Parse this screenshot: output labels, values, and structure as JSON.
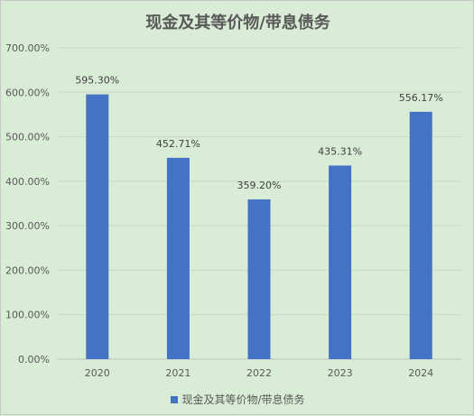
{
  "chart_data": {
    "type": "bar",
    "title": "现金及其等价物/带息债务",
    "categories": [
      "2020",
      "2021",
      "2022",
      "2023",
      "2024"
    ],
    "series": [
      {
        "name": "现金及其等价物/带息债务",
        "values": [
          595.3,
          452.71,
          359.2,
          435.31,
          556.17
        ],
        "data_labels": [
          "595.30%",
          "452.71%",
          "359.20%",
          "435.31%",
          "556.17%"
        ],
        "color": "#4472c4"
      }
    ],
    "y_ticks": [
      "0.00%",
      "100.00%",
      "200.00%",
      "300.00%",
      "400.00%",
      "500.00%",
      "600.00%",
      "700.00%"
    ],
    "ylim": [
      0,
      700
    ],
    "grid": true,
    "legend_position": "bottom"
  }
}
